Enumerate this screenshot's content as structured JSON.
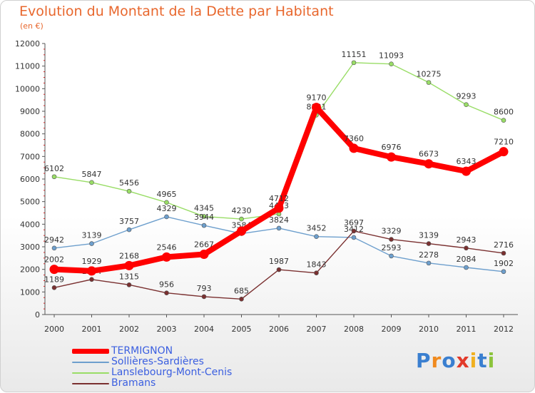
{
  "header": {
    "title": "Evolution du Montant de la Dette par Habitant",
    "subtitle": "(en €)"
  },
  "colors": {
    "title": "#e8672d",
    "axis": "#555555",
    "legend_text": "#3b5fe0",
    "TERMIGNON": "#ff0000",
    "Sollières-Sardières": "#6d9fcd",
    "Lanslebourg-Mont-Cenis": "#99dd66",
    "Bramans": "#7a3030"
  },
  "logo": {
    "letters": [
      "P",
      "r",
      "o",
      "x",
      "i",
      "t",
      "i"
    ],
    "letter_colors": [
      "#3a7fd0",
      "#f08a1e",
      "#3a7fd0",
      "#e23a2a",
      "#f0b020",
      "#3a7fd0",
      "#8cc43c"
    ]
  },
  "chart_data": {
    "type": "line",
    "title": "Evolution du Montant de la Dette par Habitant",
    "subtitle": "(en €)",
    "xlabel": "",
    "ylabel": "",
    "x": [
      "2000",
      "2001",
      "2002",
      "2003",
      "2004",
      "2005",
      "2006",
      "2007",
      "2008",
      "2009",
      "2010",
      "2011",
      "2012"
    ],
    "ylim": [
      0,
      12000
    ],
    "yticks": [
      0,
      1000,
      2000,
      3000,
      4000,
      5000,
      6000,
      7000,
      8000,
      9000,
      10000,
      11000,
      12000
    ],
    "ytick_labels": [
      "0",
      "1000",
      "2000",
      "3000",
      "4000",
      "5000",
      "6000",
      "7000",
      "8000",
      "9000",
      "10000",
      "11000",
      "12000"
    ],
    "grid": false,
    "legend_position": "bottom-left",
    "series": [
      {
        "name": "Lanslebourg-Mont-Cenis",
        "color": "#99dd66",
        "values": [
          6102,
          5847,
          5456,
          4965,
          4345,
          4230,
          4453,
          8831,
          11151,
          11093,
          10275,
          9293,
          8600
        ],
        "labels": [
          "6102",
          "5847",
          "5456",
          "4965",
          "4345",
          "4230",
          "4453",
          "8831",
          "11151",
          "11093",
          "10275",
          "9293",
          "8600"
        ]
      },
      {
        "name": "Sollières-Sardières",
        "color": "#6d9fcd",
        "values": [
          2942,
          3139,
          3757,
          4329,
          3944,
          3584,
          3824,
          3452,
          3412,
          2593,
          2278,
          2084,
          1902
        ],
        "labels": [
          "2942",
          "3139",
          "3757",
          "4329",
          "3944",
          "3584",
          "3824",
          "3452",
          "3412",
          "2593",
          "2278",
          "2084",
          "1902"
        ]
      },
      {
        "name": "Bramans",
        "color": "#7a3030",
        "values": [
          1189,
          1554,
          1315,
          956,
          793,
          685,
          1987,
          1843,
          3697,
          3329,
          3139,
          2943,
          2716
        ],
        "labels": [
          "1189",
          "1554",
          "1315",
          "956",
          "793",
          "685",
          "1987",
          "1843",
          "3697",
          "3329",
          "3139",
          "2943",
          "2716"
        ]
      },
      {
        "name": "TERMIGNON",
        "color": "#ff0000",
        "values": [
          2002,
          1929,
          2168,
          2546,
          2667,
          3694,
          4712,
          9170,
          7360,
          6976,
          6673,
          6343,
          7210
        ],
        "labels": [
          "2002",
          "1929",
          "2168",
          "2546",
          "2667",
          "",
          "4712",
          "9170",
          "7360",
          "6976",
          "6673",
          "6343",
          "7210"
        ]
      }
    ]
  },
  "legend": [
    {
      "name": "TERMIGNON",
      "color": "#ff0000"
    },
    {
      "name": "Sollières-Sardières",
      "color": "#6d9fcd"
    },
    {
      "name": "Lanslebourg-Mont-Cenis",
      "color": "#99dd66"
    },
    {
      "name": "Bramans",
      "color": "#7a3030"
    }
  ]
}
